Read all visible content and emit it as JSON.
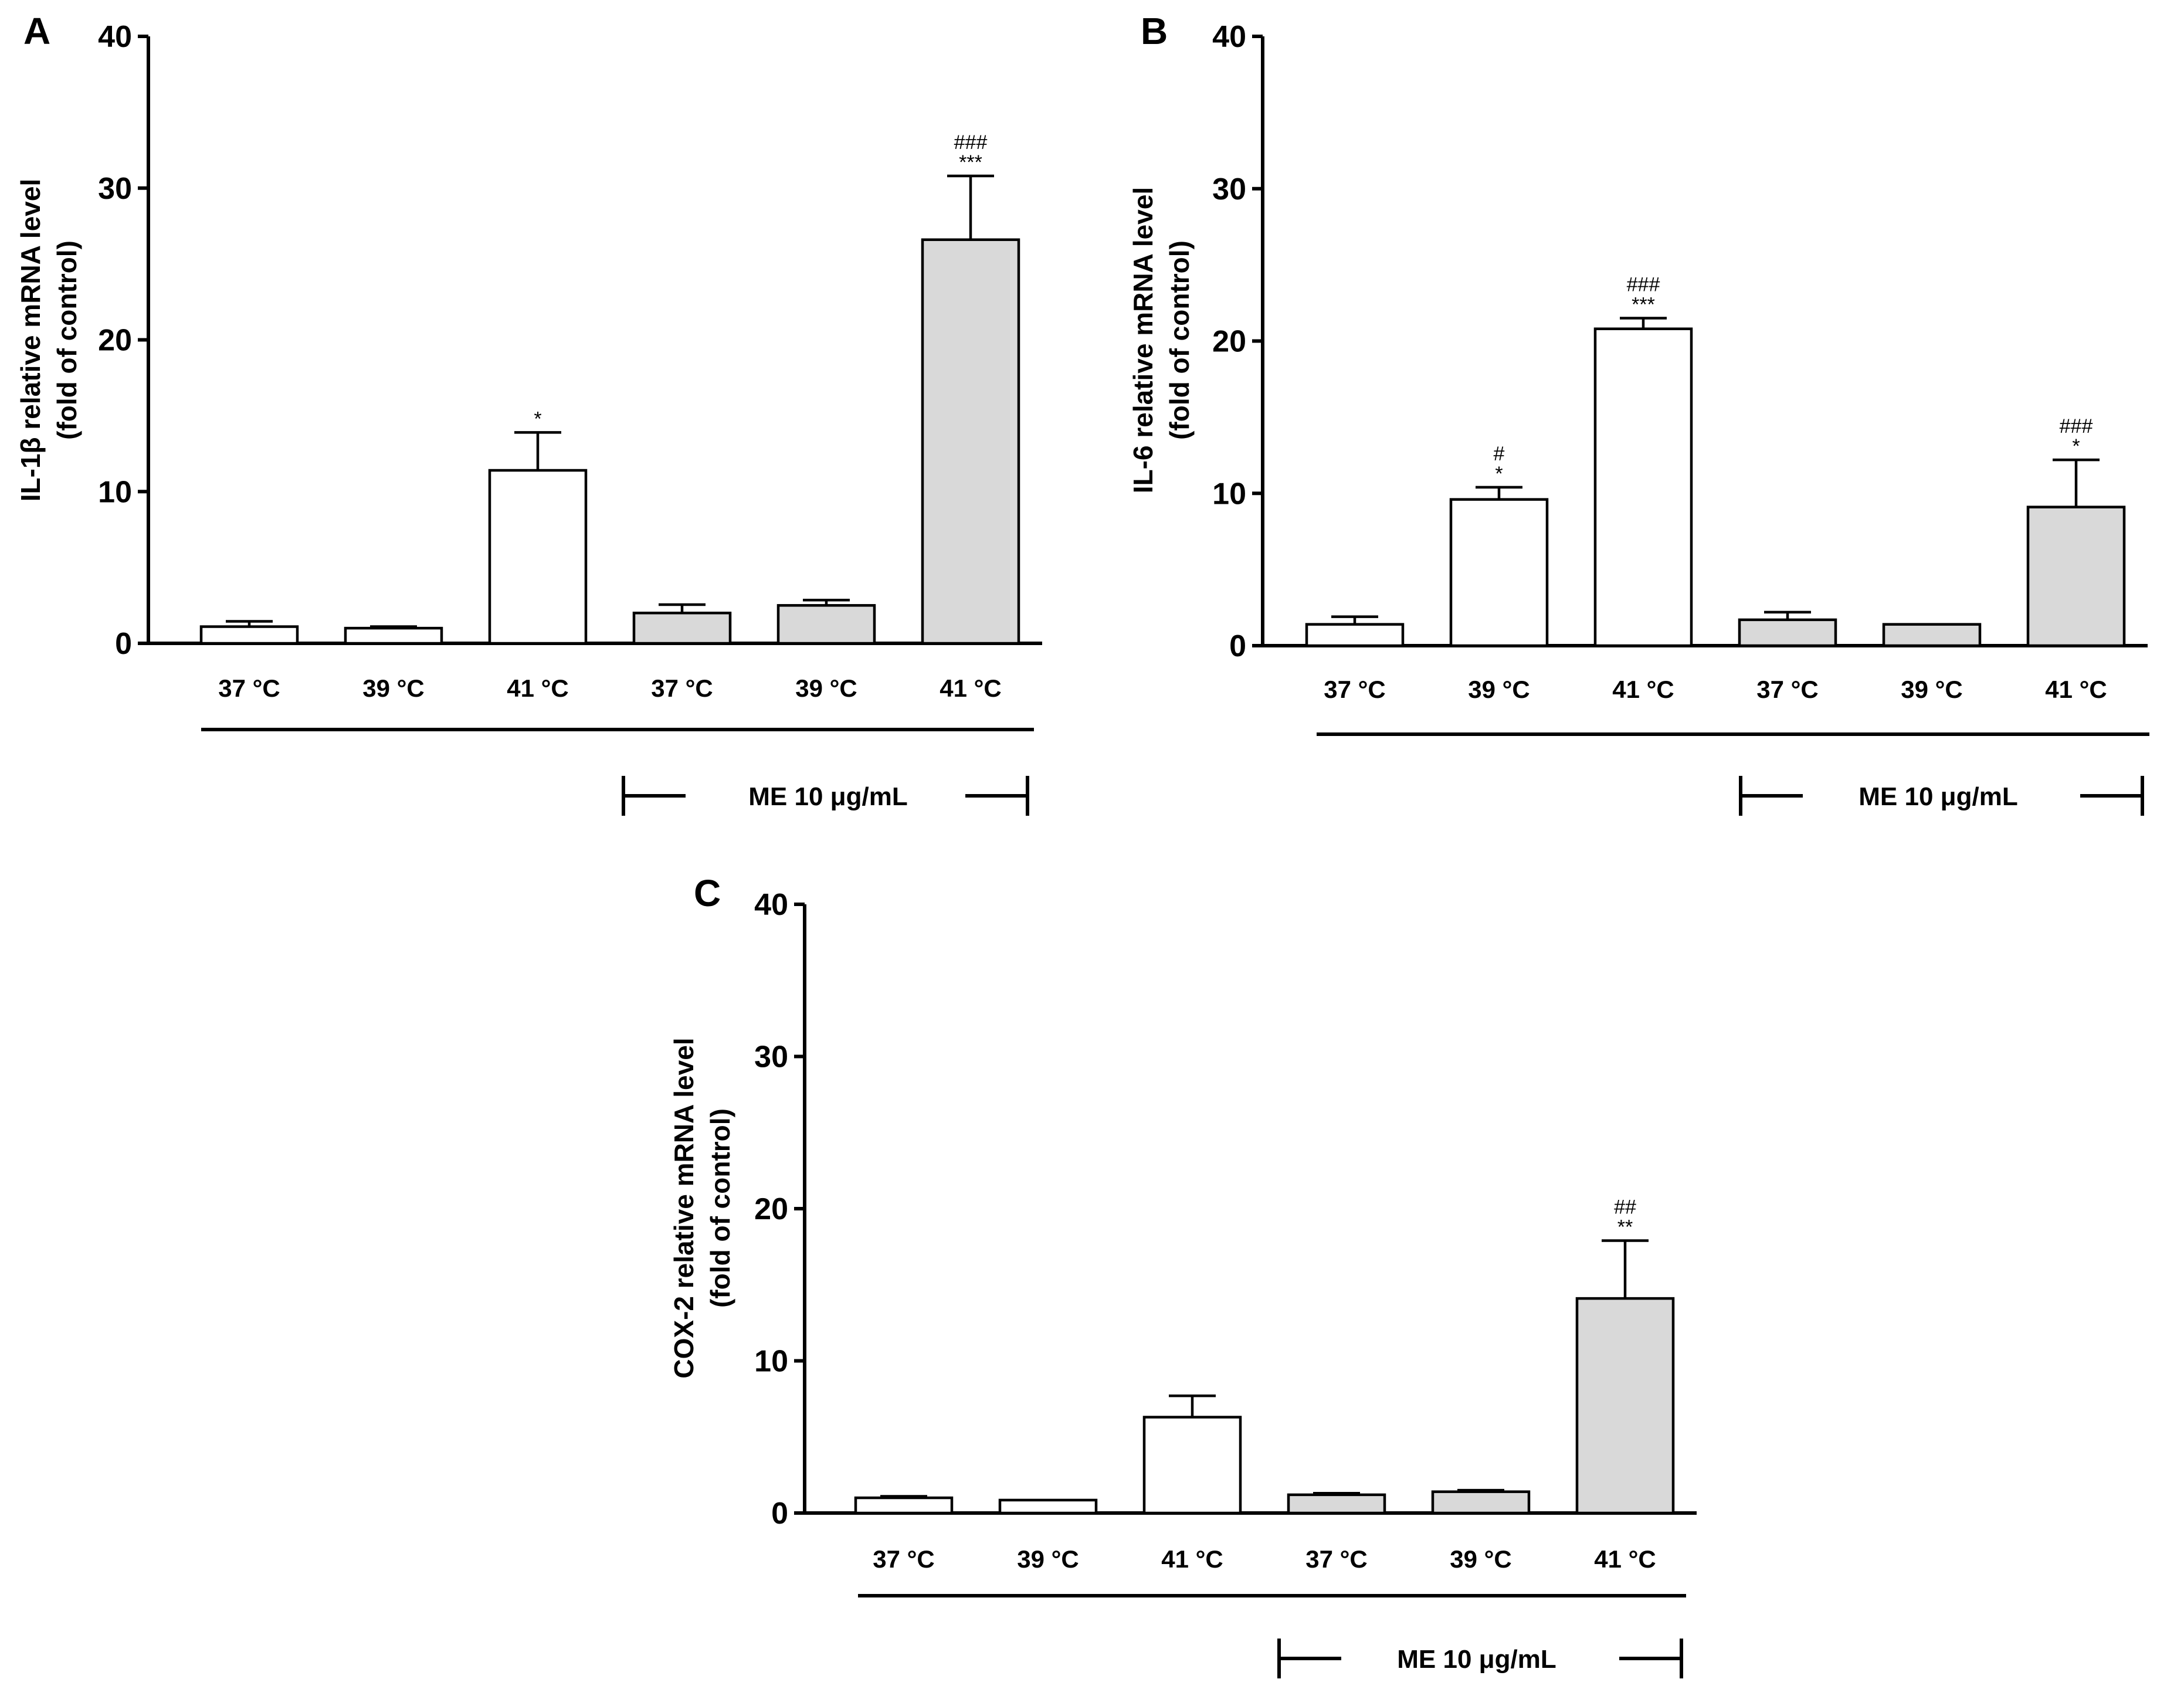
{
  "colors": {
    "control_fill": "#ffffff",
    "me_fill": "#d9d9d9",
    "stroke": "#000000"
  },
  "chart_data": [
    {
      "type": "bar",
      "panel": "A",
      "ylabel_line1": "IL-1β relative mRNA level",
      "ylabel_line2": "(fold of control)",
      "ylim": [
        0,
        40
      ],
      "yticks": [
        "0",
        "10",
        "20",
        "30",
        "40"
      ],
      "categories": [
        "37 °C",
        "39 °C",
        "41 °C",
        "37 °C",
        "39 °C",
        "41 °C"
      ],
      "values": [
        1.1,
        1.0,
        11.4,
        2.0,
        2.5,
        26.6
      ],
      "errors": [
        0.35,
        0.1,
        2.5,
        0.55,
        0.35,
        4.2
      ],
      "groups": [
        "control",
        "control",
        "control",
        "ME",
        "ME",
        "ME"
      ],
      "annotations": [
        "",
        "",
        "*",
        "",
        "",
        "###\n***"
      ],
      "group_label": "ME 10 μg/mL"
    },
    {
      "type": "bar",
      "panel": "B",
      "ylabel_line1": "IL-6 relative mRNA level",
      "ylabel_line2": "(fold of control)",
      "ylim": [
        0,
        40
      ],
      "yticks": [
        "0",
        "10",
        "20",
        "30",
        "40"
      ],
      "categories": [
        "37 °C",
        "39 °C",
        "41 °C",
        "37 °C",
        "39 °C",
        "41 °C"
      ],
      "values": [
        1.4,
        9.6,
        20.8,
        1.7,
        1.4,
        9.1
      ],
      "errors": [
        0.5,
        0.8,
        0.7,
        0.5,
        0.05,
        3.1
      ],
      "groups": [
        "control",
        "control",
        "control",
        "ME",
        "ME",
        "ME"
      ],
      "annotations": [
        "",
        "#\n*",
        "###\n***",
        "",
        "",
        "###\n*"
      ],
      "group_label": "ME 10 μg/mL"
    },
    {
      "type": "bar",
      "panel": "C",
      "ylabel_line1": "COX-2 relative mRNA level",
      "ylabel_line2": "(fold of control)",
      "ylim": [
        0,
        40
      ],
      "yticks": [
        "0",
        "10",
        "20",
        "30",
        "40"
      ],
      "categories": [
        "37 °C",
        "39 °C",
        "41 °C",
        "37 °C",
        "39 °C",
        "41 °C"
      ],
      "values": [
        1.0,
        0.85,
        6.3,
        1.2,
        1.4,
        14.1
      ],
      "errors": [
        0.1,
        0.05,
        1.4,
        0.1,
        0.1,
        3.8
      ],
      "groups": [
        "control",
        "control",
        "control",
        "ME",
        "ME",
        "ME"
      ],
      "annotations": [
        "",
        "",
        "",
        "",
        "",
        "##\n**"
      ],
      "group_label": "ME 10 μg/mL"
    }
  ]
}
